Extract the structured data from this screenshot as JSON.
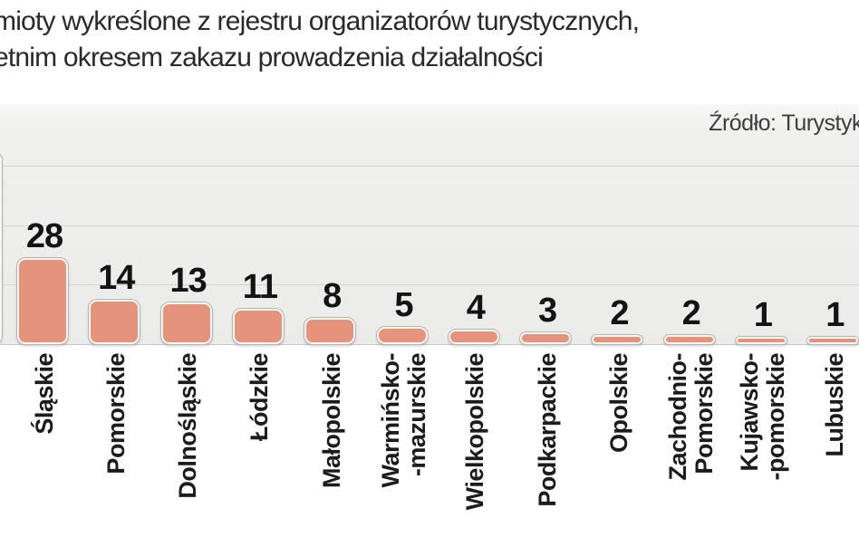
{
  "title": {
    "line1": "mioty wykreślone z rejestru organizatorów turystycznych,",
    "line2": "etnim okresem zakazu prowadzenia działalności"
  },
  "source": {
    "label": "Źródło: Turystyk"
  },
  "chart_data": {
    "type": "bar",
    "categories": [
      "Śląskie",
      "Pomorskie",
      "Dolnośląskie",
      "Łódzkie",
      "Małopolskie",
      "Warmińsko-mazurskie",
      "Wielkopolskie",
      "Podkarpackie",
      "Opolskie",
      "Zachodnio-Pomorskie",
      "Kujawsko-pomorskie",
      "Lubuskie"
    ],
    "category_label_lines": [
      [
        "Śląskie"
      ],
      [
        "Pomorskie"
      ],
      [
        "Dolnośląskie"
      ],
      [
        "Łódzkie"
      ],
      [
        "Małopolskie"
      ],
      [
        "Warmińsko-",
        "-mazurskie"
      ],
      [
        "Wielkopolskie"
      ],
      [
        "Podkarpackie"
      ],
      [
        "Opolskie"
      ],
      [
        "Zachodnio-",
        "Pomorskie"
      ],
      [
        "Kujawsko-",
        "-pomorskie"
      ],
      [
        "Lubuskie"
      ]
    ],
    "values": [
      28,
      14,
      13,
      11,
      8,
      5,
      4,
      3,
      2,
      2,
      1,
      1
    ],
    "value_labels_shown": true,
    "grid": true,
    "gridlines_at": [
      20,
      40,
      60
    ],
    "ylim": [
      0,
      80
    ],
    "legend": null,
    "xlabel": "",
    "ylabel": "",
    "clipped_left_bar": "unlabeled bar partially visible at left image edge, value and label cut off",
    "bar_color": "#e5937d"
  },
  "colors": {
    "bar_fill": "#e5937d",
    "bar_border": "#f8f6f1",
    "bar_outline": "#b5b5b3",
    "chart_background": "#efefed",
    "gridline": "#d3d3d1",
    "baseline": "#c9c9c7",
    "title_text": "#2a2a2a",
    "source_text": "#3d3d3d",
    "value_text": "#141414",
    "axis_label_text": "#1c1c1c"
  }
}
